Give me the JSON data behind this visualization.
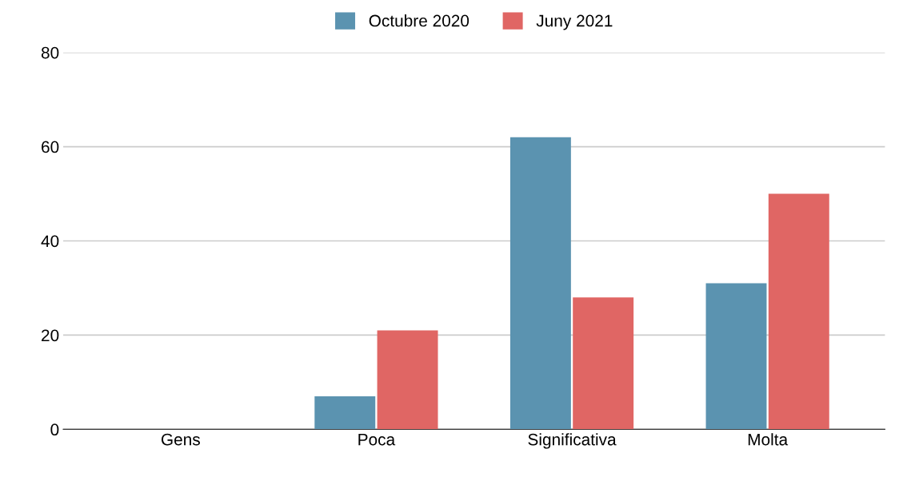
{
  "chart_data": {
    "type": "bar",
    "categories": [
      "Gens",
      "Poca",
      "Significativa",
      "Molta"
    ],
    "series": [
      {
        "name": "Octubre 2020",
        "color": "#5b93b0",
        "values": [
          0,
          7,
          62,
          31
        ]
      },
      {
        "name": "Juny 2021",
        "color": "#e06664",
        "values": [
          0,
          21,
          28,
          50
        ]
      }
    ],
    "ylim": [
      0,
      80
    ],
    "yticks": [
      0,
      20,
      40,
      60,
      80
    ],
    "grid": "y",
    "legend": "top"
  }
}
